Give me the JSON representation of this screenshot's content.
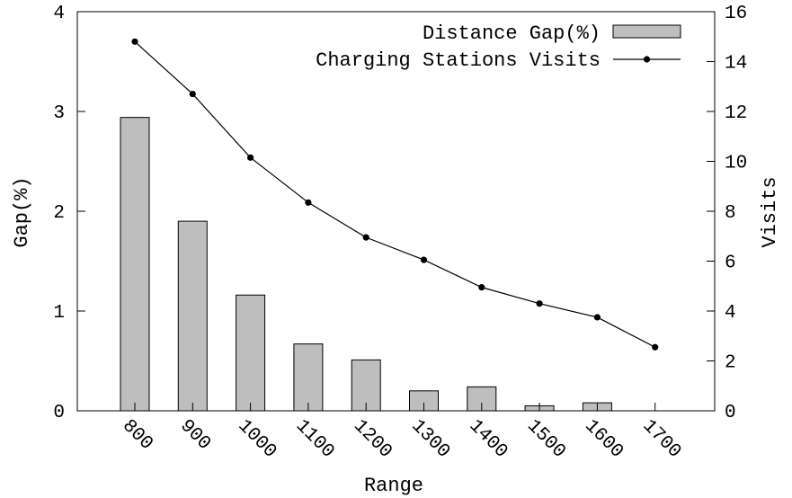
{
  "chart_data": {
    "type": "bar",
    "categories": [
      "800",
      "900",
      "1000",
      "1100",
      "1200",
      "1300",
      "1400",
      "1500",
      "1600",
      "1700"
    ],
    "xlabel": "Range",
    "ylabel": "Gap(%)",
    "y2label": "Visits",
    "ylim": [
      0,
      4
    ],
    "y2lim": [
      0,
      16
    ],
    "yticks": [
      0,
      1,
      2,
      3,
      4
    ],
    "y2ticks": [
      0,
      2,
      4,
      6,
      8,
      10,
      12,
      14,
      16
    ],
    "series": [
      {
        "name": "Distance Gap(%)",
        "type": "bar",
        "axis": "left",
        "color": "#bebebe",
        "values": [
          2.94,
          1.9,
          1.16,
          0.67,
          0.51,
          0.2,
          0.24,
          0.05,
          0.08,
          0.0
        ]
      },
      {
        "name": "Charging Stations Visits",
        "type": "line",
        "axis": "right",
        "color": "#000000",
        "values": [
          14.8,
          12.7,
          10.15,
          8.35,
          6.95,
          6.05,
          4.95,
          4.3,
          3.75,
          2.55
        ]
      }
    ],
    "legend": "top-right",
    "grid": false
  }
}
